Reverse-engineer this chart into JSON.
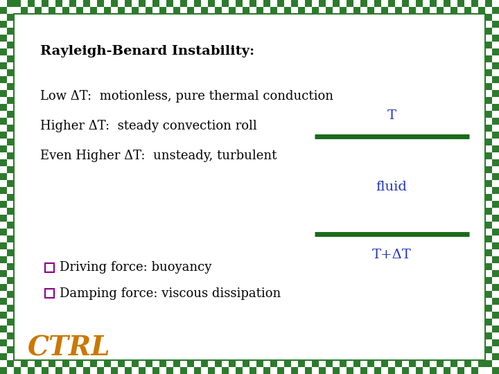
{
  "title": "Rayleigh-Benard Instability:",
  "background_color": "#ffffff",
  "border_color": "#2d7a2d",
  "text_color_black": "#000000",
  "text_color_blue": "#2233bb",
  "text_color_orange": "#cc7700",
  "text_color_purple": "#8b008b",
  "line_color": "#1a6b1a",
  "line1_text": "Low ΔT:  motionless, pure thermal conduction",
  "line2_text": "Higher ΔT:  steady convection roll",
  "line3_text": "Even Higher ΔT:  unsteady, turbulent",
  "label_T": "T",
  "label_fluid": "fluid",
  "label_TdT": "T+ΔT",
  "bullet1": "Driving force: buoyancy",
  "bullet2": "Damping force: viscous dissipation",
  "ctrl_text": "CTRL",
  "title_fontsize": 14,
  "body_fontsize": 13,
  "label_fontsize": 13,
  "ctrl_fontsize": 28,
  "fig_width": 7.2,
  "fig_height": 5.4,
  "dpi": 100
}
